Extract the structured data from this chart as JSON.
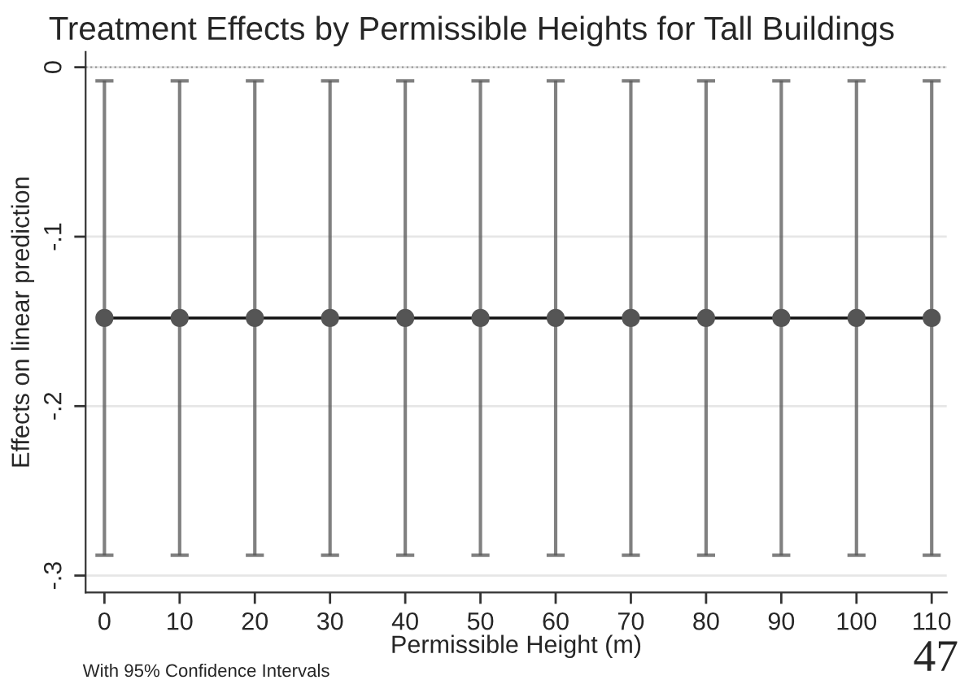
{
  "chart_data": {
    "type": "line",
    "title": "Treatment Effects by Permissible Heights for Tall Buildings",
    "xlabel": "Permissible Height (m)",
    "ylabel": "Effects on linear prediction",
    "x": [
      0,
      10,
      20,
      30,
      40,
      50,
      60,
      70,
      80,
      90,
      100,
      110
    ],
    "series": [
      {
        "color": "#555555",
        "values": [
          -0.148,
          -0.148,
          -0.148,
          -0.148,
          -0.148,
          -0.148,
          -0.148,
          -0.148,
          -0.148,
          -0.148,
          -0.148,
          -0.148
        ],
        "errors": [
          [
            -0.288,
            -0.008
          ],
          [
            -0.288,
            -0.008
          ],
          [
            -0.288,
            -0.008
          ],
          [
            -0.288,
            -0.008
          ],
          [
            -0.288,
            -0.008
          ],
          [
            -0.288,
            -0.008
          ],
          [
            -0.288,
            -0.008
          ],
          [
            -0.288,
            -0.008
          ],
          [
            -0.288,
            -0.008
          ],
          [
            -0.288,
            -0.008
          ],
          [
            -0.288,
            -0.008
          ],
          [
            -0.288,
            -0.008
          ]
        ]
      }
    ],
    "marker": "circle",
    "line_style": "solid",
    "xlim": [
      -2.5,
      112
    ],
    "xticks": [
      0,
      10,
      20,
      30,
      40,
      50,
      60,
      70,
      80,
      90,
      100,
      110
    ],
    "ylim": [
      -0.31,
      0.009
    ],
    "yticks": [
      {
        "value": 0,
        "label": "0"
      },
      {
        "value": -0.1,
        "label": "-.1"
      },
      {
        "value": -0.2,
        "label": "-.2"
      },
      {
        "value": -0.3,
        "label": "-.3"
      }
    ],
    "grid": "y",
    "ref_lines": [
      {
        "axis": "y",
        "value": 0,
        "color": "#999999",
        "line_style": "dotted"
      }
    ],
    "annotations": [
      "With 95% Confidence Intervals",
      "47"
    ]
  }
}
